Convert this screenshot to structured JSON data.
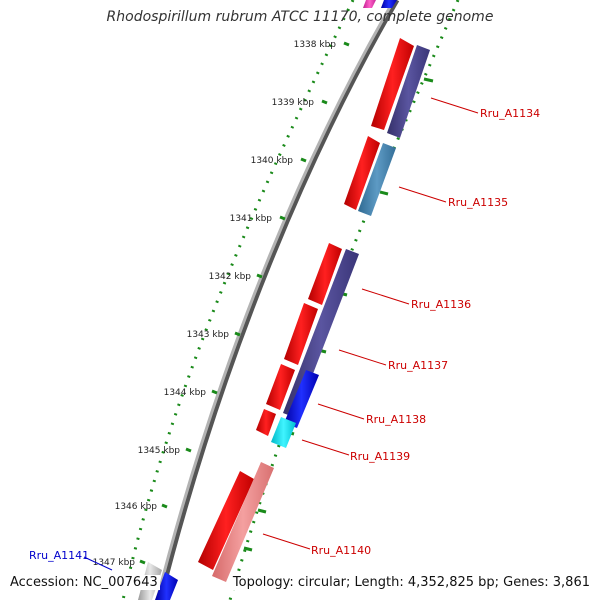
{
  "title": "Rhodospirillum rubrum ATCC 11170, complete genome",
  "footer": {
    "accession": "Accession: NC_007643",
    "topology": "Topology: circular; Length: 4,352,825 bp; Genes: 3,861"
  },
  "colors": {
    "forward_cds": "#ff0000",
    "backbone": "#888888",
    "ruler": "#1a8a1a",
    "label_red": "#cc0000",
    "label_blue": "#0000cc"
  },
  "ticks": [
    {
      "label": "1338 kbp"
    },
    {
      "label": "1339 kbp"
    },
    {
      "label": "1340 kbp"
    },
    {
      "label": "1341 kbp"
    },
    {
      "label": "1342 kbp"
    },
    {
      "label": "1343 kbp"
    },
    {
      "label": "1344 kbp"
    },
    {
      "label": "1345 kbp"
    },
    {
      "label": "1346 kbp"
    },
    {
      "label": "1347 kbp"
    }
  ],
  "gene_labels": [
    {
      "name": "Rru_A1134",
      "color": "#cc0000"
    },
    {
      "name": "Rru_A1135",
      "color": "#cc0000"
    },
    {
      "name": "Rru_A1136",
      "color": "#cc0000"
    },
    {
      "name": "Rru_A1137",
      "color": "#cc0000"
    },
    {
      "name": "Rru_A1138",
      "color": "#cc0000"
    },
    {
      "name": "Rru_A1139",
      "color": "#cc0000"
    },
    {
      "name": "Rru_A1140",
      "color": "#cc0000"
    },
    {
      "name": "Rru_A1141",
      "color": "#0000cc"
    }
  ]
}
